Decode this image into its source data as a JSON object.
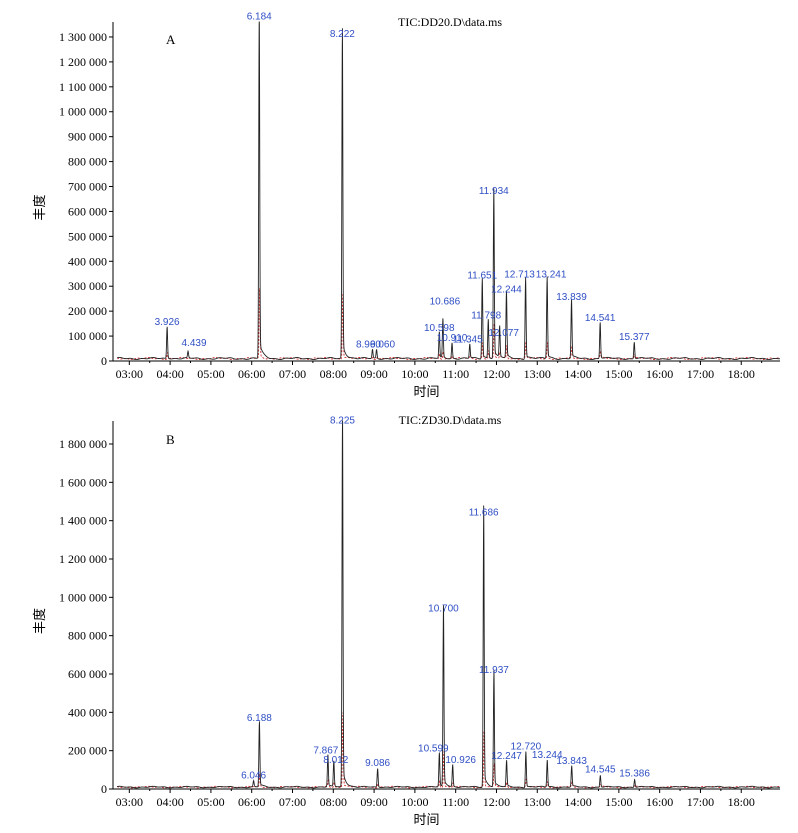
{
  "chart_data": [
    {
      "type": "line",
      "panel_label": "A",
      "title": "TIC:DD20.D\\data.ms",
      "xlabel": "时间",
      "ylabel": "丰度",
      "xlim": [
        2.6,
        18.95
      ],
      "ylim": [
        0,
        1360000
      ],
      "x_ticks": [
        3,
        4,
        5,
        6,
        7,
        8,
        9,
        10,
        11,
        12,
        13,
        14,
        15,
        16,
        17,
        18
      ],
      "x_tick_labels": [
        "03:00",
        "04:00",
        "05:00",
        "06:00",
        "07:00",
        "08:00",
        "09:00",
        "10:00",
        "11:00",
        "12:00",
        "13:00",
        "14:00",
        "15:00",
        "16:00",
        "17:00",
        "18:00"
      ],
      "y_ticks": [
        0,
        100000,
        200000,
        300000,
        400000,
        500000,
        600000,
        700000,
        800000,
        900000,
        1000000,
        1100000,
        1200000,
        1300000
      ],
      "y_tick_labels": [
        "0",
        "100 000",
        "200 000",
        "300 000",
        "400 000",
        "500 000",
        "600 000",
        "700 000",
        "800 000",
        "900 000",
        "1 000 000",
        "1 100 000",
        "1 200 000",
        "1 300 000"
      ],
      "baseline": 10000,
      "peaks": [
        {
          "rt": 3.926,
          "label": "3.926",
          "height": 125000
        },
        {
          "rt": 4.439,
          "label": "4.439",
          "height": 25000
        },
        {
          "rt": 6.184,
          "label": "6.184",
          "height": 1350000
        },
        {
          "rt": 8.222,
          "label": "8.222",
          "height": 1280000
        },
        {
          "rt": 8.96,
          "label": "8.960",
          "height": 35000
        },
        {
          "rt": 9.06,
          "label": "9.060",
          "height": 35000
        },
        {
          "rt": 10.598,
          "label": "10.598",
          "height": 100000
        },
        {
          "rt": 10.686,
          "label": "10.686",
          "height": 150000
        },
        {
          "rt": 10.91,
          "label": "10.910",
          "height": 60000
        },
        {
          "rt": 11.345,
          "label": "11.345",
          "height": 55000
        },
        {
          "rt": 11.651,
          "label": "11.651",
          "height": 310000
        },
        {
          "rt": 11.798,
          "label": "11.798",
          "height": 150000
        },
        {
          "rt": 11.934,
          "label": "11.934",
          "height": 650000
        },
        {
          "rt": 12.077,
          "label": "12.077",
          "height": 120000
        },
        {
          "rt": 12.244,
          "label": "12.244",
          "height": 255000
        },
        {
          "rt": 12.713,
          "label": "12.713",
          "height": 315000
        },
        {
          "rt": 13.241,
          "label": "13.241",
          "height": 315000
        },
        {
          "rt": 13.839,
          "label": "13.839",
          "height": 225000
        },
        {
          "rt": 14.541,
          "label": "14.541",
          "height": 140000
        },
        {
          "rt": 15.377,
          "label": "15.377",
          "height": 65000
        }
      ]
    },
    {
      "type": "line",
      "panel_label": "B",
      "title": "TIC:ZD30.D\\data.ms",
      "xlabel": "时间",
      "ylabel": "丰度",
      "xlim": [
        2.6,
        18.95
      ],
      "ylim": [
        0,
        1920000
      ],
      "x_ticks": [
        3,
        4,
        5,
        6,
        7,
        8,
        9,
        10,
        11,
        12,
        13,
        14,
        15,
        16,
        17,
        18
      ],
      "x_tick_labels": [
        "03:00",
        "04:00",
        "05:00",
        "06:00",
        "07:00",
        "08:00",
        "09:00",
        "10:00",
        "11:00",
        "12:00",
        "13:00",
        "14:00",
        "15:00",
        "16:00",
        "17:00",
        "18:00"
      ],
      "y_ticks": [
        0,
        200000,
        400000,
        600000,
        800000,
        1000000,
        1200000,
        1400000,
        1600000,
        1800000
      ],
      "y_tick_labels": [
        "0",
        "200 000",
        "400 000",
        "600 000",
        "800 000",
        "1 000 000",
        "1 200 000",
        "1 400 000",
        "1 600 000",
        "1 800 000"
      ],
      "baseline": 10000,
      "peaks": [
        {
          "rt": 6.046,
          "label": "6.046",
          "height": 30000
        },
        {
          "rt": 6.188,
          "label": "6.188",
          "height": 330000
        },
        {
          "rt": 7.867,
          "label": "7.867",
          "height": 160000
        },
        {
          "rt": 8.012,
          "label": "8.012",
          "height": 130000
        },
        {
          "rt": 8.225,
          "label": "8.225",
          "height": 1880000
        },
        {
          "rt": 9.086,
          "label": "9.086",
          "height": 95000
        },
        {
          "rt": 10.599,
          "label": "10.599",
          "height": 170000
        },
        {
          "rt": 10.7,
          "label": "10.700",
          "height": 900000
        },
        {
          "rt": 10.926,
          "label": "10.926",
          "height": 110000
        },
        {
          "rt": 11.686,
          "label": "11.686",
          "height": 1400000
        },
        {
          "rt": 11.937,
          "label": "11.937",
          "height": 580000
        },
        {
          "rt": 12.247,
          "label": "12.247",
          "height": 130000
        },
        {
          "rt": 12.72,
          "label": "12.720",
          "height": 180000
        },
        {
          "rt": 13.244,
          "label": "13.244",
          "height": 135000
        },
        {
          "rt": 13.843,
          "label": "13.843",
          "height": 105000
        },
        {
          "rt": 14.545,
          "label": "14.545",
          "height": 60000
        },
        {
          "rt": 15.386,
          "label": "15.386",
          "height": 40000
        }
      ]
    }
  ],
  "colors": {
    "primary_trace": "#222222",
    "secondary_trace": "#cc2a2a",
    "peak_label": "#2f4fc4",
    "axis": "#000000"
  }
}
